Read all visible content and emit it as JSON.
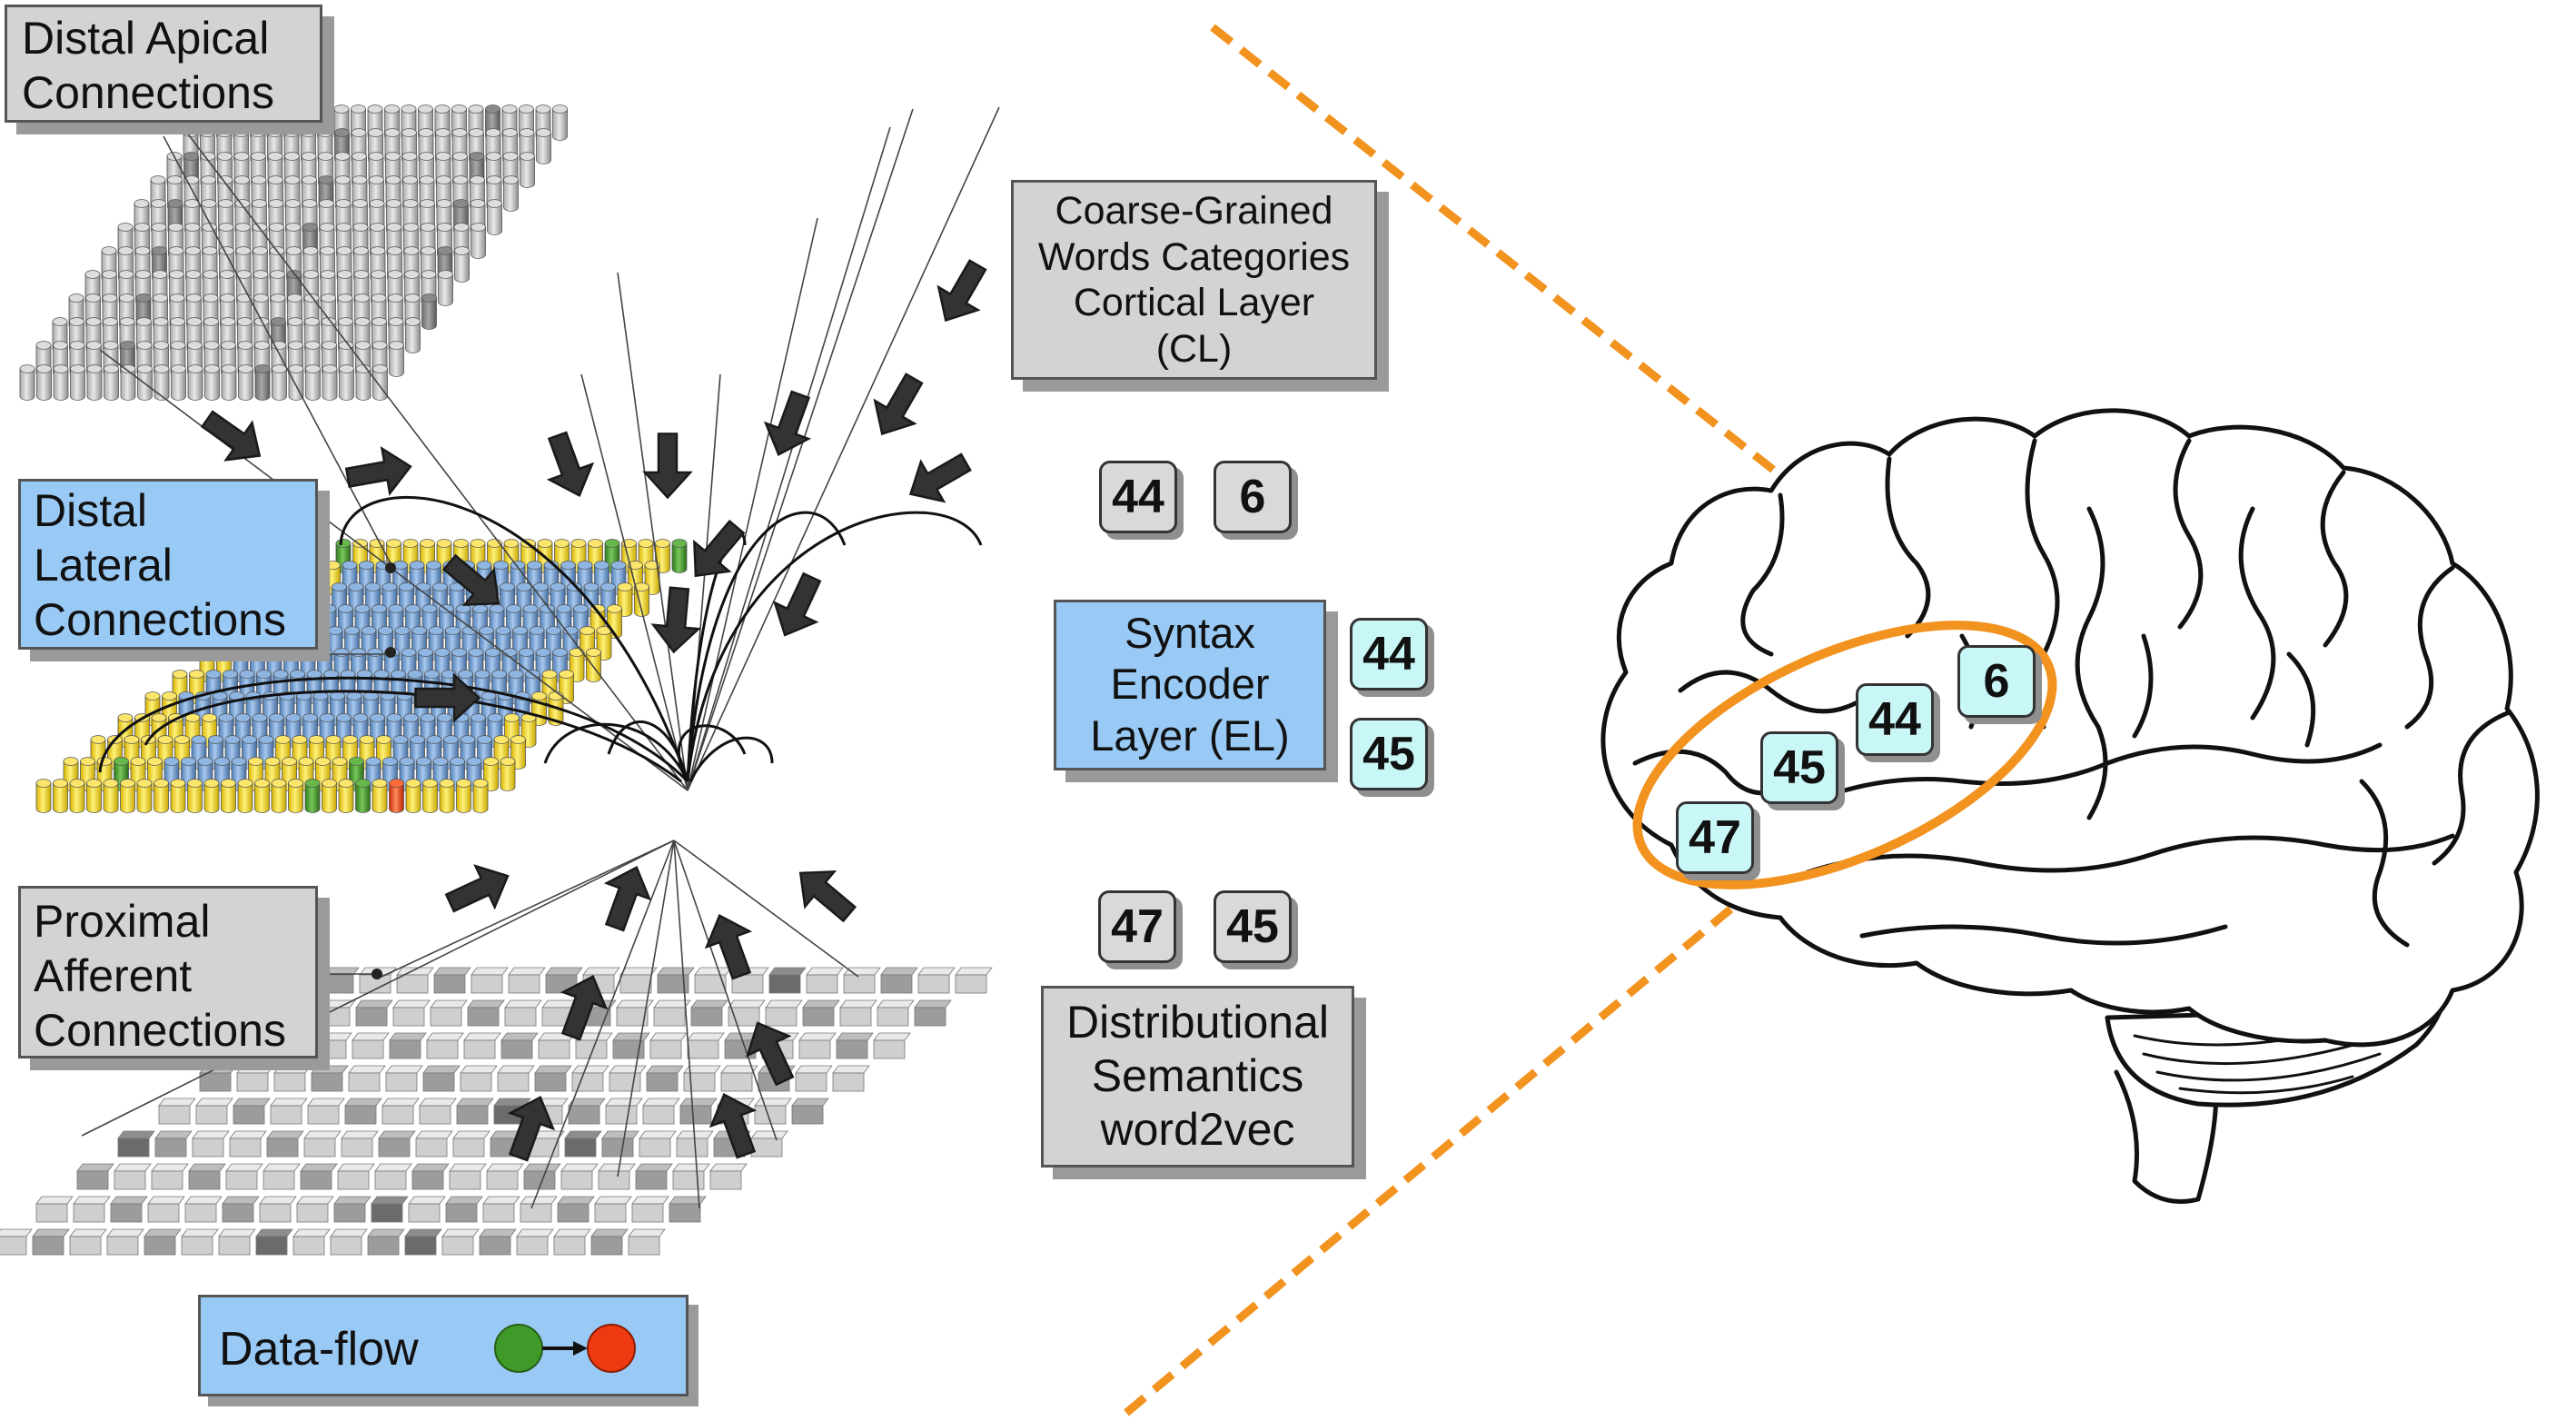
{
  "labels": {
    "distal_apical": [
      "Distal Apical",
      "Connections"
    ],
    "distal_lateral": [
      "Distal",
      "Lateral",
      "Connections"
    ],
    "proximal_afferent": [
      "Proximal",
      "Afferent",
      "Connections"
    ],
    "cortical_layer": [
      "Coarse-Grained",
      "Words Categories",
      "Cortical Layer",
      "(CL)"
    ],
    "syntax_encoder": [
      "Syntax",
      "Encoder",
      "Layer (EL)"
    ],
    "distributional_semantics": [
      "Distributional",
      "Semantics",
      "word2vec"
    ]
  },
  "legend": {
    "label": "Data-flow",
    "source_color": "#3f9a2a",
    "target_color": "#ee3a10"
  },
  "badges": {
    "cl": [
      "44",
      "6"
    ],
    "el": [
      "44",
      "45"
    ],
    "ds": [
      "47",
      "45"
    ]
  },
  "brain_areas": [
    "47",
    "45",
    "44",
    "6"
  ],
  "colors": {
    "column_gray": "#bdbdbd",
    "column_blue": "#6f9fd0",
    "column_yellow": "#f4d21c",
    "column_green": "#3f9a2a",
    "column_red": "#ee3a10",
    "highlight_orange": "#f2921f",
    "label_gray": "#d3d3d3",
    "label_blue": "#99c9f5",
    "badge_cyan": "#c9f6f6"
  }
}
